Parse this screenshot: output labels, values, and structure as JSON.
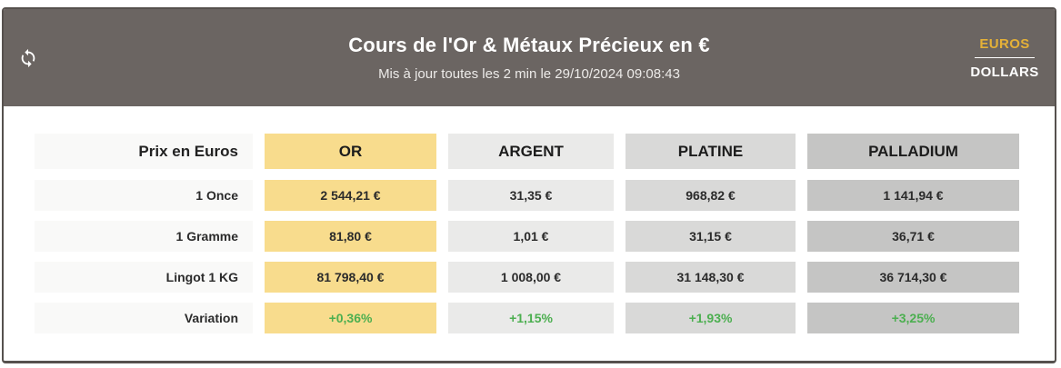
{
  "header": {
    "title": "Cours de l'Or & Métaux Précieux en €",
    "subtitle": "Mis à jour toutes les 2 min le 29/10/2024 09:08:43",
    "refresh_icon": "refresh-circular-arrows-icon",
    "currency_toggle": {
      "selected": "EUROS",
      "options": [
        "EUROS",
        "DOLLARS"
      ]
    }
  },
  "colors": {
    "header_bg": "#6b6562",
    "accent_gold_text": "#e5b137",
    "gold_cell": "#f8dc8d",
    "label_cell": "#f9f9f8",
    "argent_cell": "#eaeae9",
    "platine_cell": "#d9d9d8",
    "palladium_cell": "#c5c5c4",
    "positive_green": "#4caf50",
    "card_border": "#56514e"
  },
  "table": {
    "corner_label": "Prix en Euros",
    "columns": [
      {
        "key": "or",
        "label": "OR"
      },
      {
        "key": "argent",
        "label": "ARGENT"
      },
      {
        "key": "platine",
        "label": "PLATINE"
      },
      {
        "key": "palladium",
        "label": "PALLADIUM"
      }
    ],
    "rows": [
      {
        "label": "1 Once",
        "type": "price",
        "values": [
          "2 544,21 €",
          "31,35 €",
          "968,82 €",
          "1 141,94 €"
        ]
      },
      {
        "label": "1 Gramme",
        "type": "price",
        "values": [
          "81,80 €",
          "1,01 €",
          "31,15 €",
          "36,71 €"
        ]
      },
      {
        "label": "Lingot 1 KG",
        "type": "price",
        "values": [
          "81 798,40 €",
          "1 008,00 €",
          "31 148,30 €",
          "36 714,30 €"
        ]
      },
      {
        "label": "Variation",
        "type": "variation",
        "values": [
          "+0,36%",
          "+1,15%",
          "+1,93%",
          "+3,25%"
        ]
      }
    ]
  }
}
